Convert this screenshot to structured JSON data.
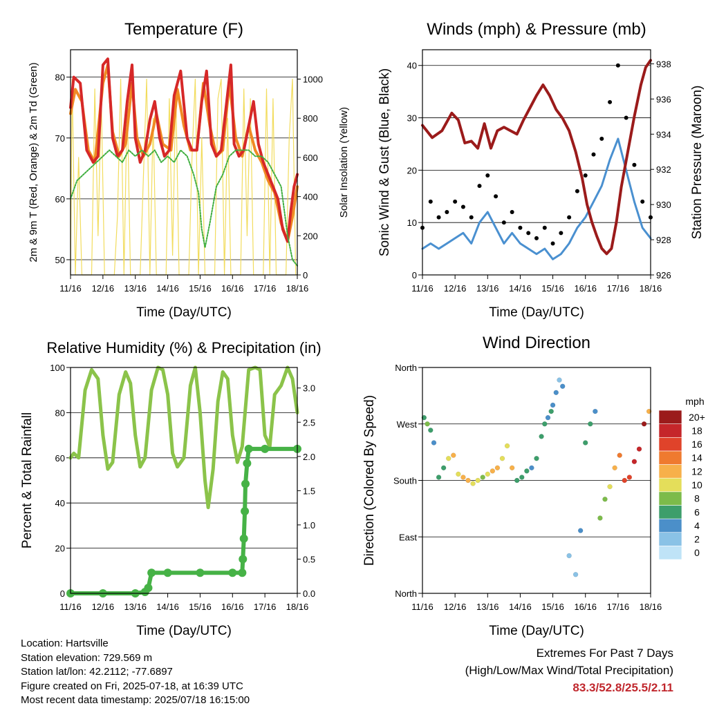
{
  "colors": {
    "temp_2m": "#d62828",
    "temp_9m": "#f08a24",
    "dewpoint": "#3fae3f",
    "solar": "#f2dc5d",
    "wind": "#4a90d0",
    "gust": "#000000",
    "pressure": "#9b1b1b",
    "rh": "#8bc34a",
    "precip": "#46b246"
  },
  "info": {
    "location": "Location: Hartsville",
    "elevation": "Station elevation: 729.569 m",
    "latlon": "Station lat/lon: 42.2112; -77.6897",
    "created": "Figure created on Fri, 2025-07-18, at 16:39 UTC",
    "recent": "Most recent data timestamp: 2025/07/18 16:15:00"
  },
  "extremes": {
    "line1": "Extremes For Past 7 Days",
    "line2": "(High/Low/Max Wind/Total Precipitation)",
    "values": "83.3/52.8/25.5/2.11"
  },
  "chart_data": [
    {
      "type": "line",
      "title": "Temperature (F)",
      "xlabel": "Time (Day/UTC)",
      "ylabel": "2m & 9m T (Red, Orange) & 2m Td (Green)",
      "ylabel_right": "Solar Insolation (Yellow)",
      "x_ticks": [
        "11/16",
        "12/16",
        "13/16",
        "14/16",
        "15/16",
        "16/16",
        "17/16",
        "18/16"
      ],
      "xlim": [
        0,
        7
      ],
      "ylim": [
        47.5,
        84.5
      ],
      "y_ticks": [
        50,
        60,
        70,
        80
      ],
      "ylim_right": [
        0,
        1150
      ],
      "y_ticks_right": [
        0,
        200,
        400,
        600,
        800,
        1000
      ],
      "series": [
        {
          "name": "2m T",
          "x": [
            0,
            0.1,
            0.3,
            0.5,
            0.7,
            0.85,
            1.0,
            1.15,
            1.3,
            1.45,
            1.6,
            1.75,
            1.9,
            2.0,
            2.15,
            2.3,
            2.45,
            2.6,
            2.75,
            2.9,
            3.05,
            3.2,
            3.4,
            3.6,
            3.75,
            3.9,
            4.05,
            4.2,
            4.35,
            4.5,
            4.65,
            4.8,
            4.95,
            5.05,
            5.2,
            5.35,
            5.5,
            5.65,
            5.8,
            5.95,
            6.1,
            6.25,
            6.4,
            6.55,
            6.7,
            6.8,
            6.9,
            7.0
          ],
          "values": [
            75,
            80,
            79,
            68,
            66,
            67,
            82,
            83,
            70,
            67,
            68,
            76,
            82,
            70,
            66,
            68,
            73,
            76,
            70,
            67,
            68,
            77,
            81,
            70,
            68,
            68,
            76,
            81,
            69,
            67,
            68,
            75,
            82,
            69,
            67,
            68,
            72,
            76,
            69,
            66,
            64,
            62,
            60,
            55,
            53,
            58,
            62,
            64
          ]
        },
        {
          "name": "9m T",
          "x": [
            0,
            0.15,
            0.35,
            0.55,
            0.75,
            1.0,
            1.15,
            1.3,
            1.5,
            1.7,
            1.9,
            2.05,
            2.25,
            2.45,
            2.65,
            2.85,
            3.1,
            3.3,
            3.5,
            3.7,
            3.9,
            4.1,
            4.3,
            4.5,
            4.7,
            4.9,
            5.1,
            5.3,
            5.5,
            5.7,
            5.9,
            6.1,
            6.3,
            6.5,
            6.7,
            6.85,
            7.0
          ],
          "values": [
            74,
            78,
            76,
            68,
            66,
            79,
            82,
            71,
            67,
            69,
            79,
            70,
            67,
            69,
            74,
            69,
            68,
            78,
            72,
            68,
            68,
            79,
            72,
            67,
            68,
            79,
            70,
            67,
            72,
            68,
            66,
            63,
            61,
            56,
            53,
            57,
            62
          ]
        },
        {
          "name": "2m Td",
          "x": [
            0,
            0.2,
            0.4,
            0.6,
            0.8,
            1.0,
            1.2,
            1.4,
            1.6,
            1.8,
            2.0,
            2.2,
            2.4,
            2.6,
            2.8,
            3.0,
            3.2,
            3.4,
            3.6,
            3.8,
            3.95,
            4.05,
            4.15,
            4.3,
            4.5,
            4.7,
            4.9,
            5.1,
            5.3,
            5.5,
            5.7,
            5.9,
            6.1,
            6.3,
            6.5,
            6.7,
            6.85,
            7.0
          ],
          "values": [
            60,
            63,
            64,
            65,
            66,
            67,
            68,
            67,
            66,
            68,
            67,
            68,
            67,
            68,
            66,
            67,
            66,
            68,
            67,
            64,
            61,
            55,
            52,
            56,
            62,
            64,
            67,
            68,
            68,
            68,
            67,
            67,
            66,
            64,
            62,
            54,
            50,
            49
          ]
        },
        {
          "name": "Solar Insolation",
          "axis": "right",
          "x": [
            0,
            0.05,
            0.15,
            0.25,
            0.35,
            0.45,
            0.55,
            0.65,
            0.75,
            0.85,
            0.95,
            1.05,
            1.15,
            1.25,
            1.35,
            1.45,
            1.55,
            1.65,
            1.75,
            1.85,
            1.95,
            2.05,
            2.15,
            2.25,
            2.35,
            2.45,
            2.55,
            2.65,
            2.75,
            2.85,
            2.95,
            3.05,
            3.15,
            3.25,
            3.35,
            3.45,
            3.55,
            3.65,
            3.75,
            3.85,
            3.95,
            4.05,
            4.15,
            4.25,
            4.35,
            4.45,
            4.55,
            4.65,
            4.75,
            4.85,
            4.95,
            5.05,
            5.15,
            5.25,
            5.35,
            5.45,
            5.55,
            5.65,
            5.75,
            5.85,
            5.95,
            6.05,
            6.15,
            6.25,
            6.35,
            6.45,
            6.55,
            6.65,
            6.75,
            6.85,
            6.95,
            7.0
          ],
          "values": [
            0,
            1000,
            0,
            600,
            0,
            0,
            0,
            0,
            950,
            200,
            900,
            0,
            0,
            0,
            0,
            300,
            1000,
            0,
            900,
            0,
            0,
            0,
            0,
            500,
            1000,
            0,
            800,
            0,
            0,
            0,
            0,
            900,
            100,
            950,
            0,
            0,
            0,
            0,
            600,
            1000,
            0,
            700,
            0,
            0,
            0,
            0,
            900,
            1000,
            0,
            800,
            0,
            0,
            0,
            0,
            950,
            200,
            900,
            0,
            0,
            0,
            0,
            950,
            0,
            900,
            0,
            0,
            0,
            0,
            700,
            1000,
            0,
            0
          ]
        }
      ]
    },
    {
      "type": "scatter",
      "title": "Winds (mph) & Pressure (mb)",
      "xlabel": "Time (Day/UTC)",
      "ylabel": "Sonic Wind & Gust (Blue, Black)",
      "ylabel_right": "Station Pressure (Maroon)",
      "x_ticks": [
        "11/16",
        "12/16",
        "13/16",
        "14/16",
        "15/16",
        "16/16",
        "17/16",
        "18/16"
      ],
      "xlim": [
        0,
        7
      ],
      "ylim": [
        0,
        43
      ],
      "y_ticks": [
        0,
        10,
        20,
        30,
        40
      ],
      "ylim_right": [
        926,
        938.8
      ],
      "y_ticks_right": [
        926,
        928,
        930,
        932,
        934,
        936,
        938
      ],
      "series": [
        {
          "name": "Sonic Wind",
          "x": [
            0,
            0.25,
            0.5,
            0.75,
            1.0,
            1.25,
            1.5,
            1.75,
            2.0,
            2.25,
            2.5,
            2.75,
            3.0,
            3.25,
            3.5,
            3.75,
            4.0,
            4.25,
            4.5,
            4.75,
            5.0,
            5.25,
            5.5,
            5.75,
            6.0,
            6.25,
            6.5,
            6.75,
            7.0
          ],
          "values": [
            5,
            6,
            5,
            6,
            7,
            8,
            6,
            10,
            12,
            9,
            6,
            8,
            6,
            5,
            4,
            5,
            3,
            4,
            6,
            9,
            11,
            14,
            17,
            22,
            26,
            20,
            14,
            9,
            7
          ]
        },
        {
          "name": "Gust",
          "x": [
            0,
            0.25,
            0.5,
            0.75,
            1.0,
            1.25,
            1.5,
            1.75,
            2.0,
            2.25,
            2.5,
            2.75,
            3.0,
            3.25,
            3.5,
            3.75,
            4.0,
            4.25,
            4.5,
            4.75,
            5.0,
            5.25,
            5.5,
            5.75,
            6.0,
            6.25,
            6.5,
            6.75,
            7.0
          ],
          "values": [
            9,
            14,
            11,
            12,
            14,
            13,
            11,
            17,
            19,
            15,
            10,
            12,
            9,
            8,
            7,
            9,
            6,
            8,
            11,
            16,
            19,
            23,
            26,
            33,
            40,
            30,
            21,
            14,
            11
          ]
        },
        {
          "name": "Station Pressure",
          "axis": "right",
          "x": [
            0,
            0.3,
            0.6,
            0.9,
            1.1,
            1.3,
            1.5,
            1.7,
            1.9,
            2.1,
            2.3,
            2.5,
            2.7,
            2.9,
            3.1,
            3.3,
            3.5,
            3.7,
            3.9,
            4.1,
            4.3,
            4.5,
            4.7,
            4.9,
            5.05,
            5.2,
            5.35,
            5.5,
            5.65,
            5.8,
            5.95,
            6.1,
            6.3,
            6.5,
            6.7,
            6.85,
            7.0
          ],
          "values": [
            934.5,
            933.8,
            934.2,
            935.2,
            934.8,
            933.5,
            933.6,
            933.2,
            934.6,
            933.2,
            934.2,
            934.4,
            934.2,
            934.0,
            934.8,
            935.5,
            936.2,
            936.8,
            936.2,
            935.4,
            934.9,
            934.2,
            933.0,
            931.5,
            930.0,
            929.0,
            928.2,
            927.5,
            927.2,
            927.5,
            929.0,
            931.0,
            933.0,
            935.0,
            936.8,
            937.8,
            938.2
          ]
        }
      ]
    },
    {
      "type": "line",
      "title": "Relative Humidity (%) & Precipitation (in)",
      "xlabel": "Time (Day/UTC)",
      "ylabel": "Percent & Total Rainfall",
      "x_ticks": [
        "11/16",
        "12/16",
        "13/16",
        "14/16",
        "15/16",
        "16/16",
        "17/16",
        "18/16"
      ],
      "xlim": [
        0,
        7
      ],
      "ylim": [
        0,
        100
      ],
      "y_ticks": [
        0,
        20,
        40,
        60,
        80,
        100
      ],
      "ylim_right": [
        0,
        3.3
      ],
      "y_ticks_right": [
        0.0,
        0.5,
        1.0,
        1.5,
        2.0,
        2.5,
        3.0
      ],
      "series": [
        {
          "name": "Relative Humidity",
          "x": [
            0,
            0.1,
            0.25,
            0.45,
            0.65,
            0.85,
            1.0,
            1.15,
            1.3,
            1.5,
            1.7,
            1.85,
            2.0,
            2.15,
            2.3,
            2.5,
            2.7,
            2.85,
            3.0,
            3.15,
            3.3,
            3.5,
            3.7,
            3.85,
            4.0,
            4.15,
            4.25,
            4.4,
            4.55,
            4.7,
            4.85,
            5.0,
            5.15,
            5.3,
            5.5,
            5.7,
            5.85,
            6.0,
            6.15,
            6.3,
            6.5,
            6.7,
            6.85,
            7.0
          ],
          "values": [
            60,
            62,
            60,
            90,
            99,
            95,
            70,
            55,
            58,
            88,
            98,
            93,
            70,
            56,
            60,
            90,
            100,
            99,
            88,
            62,
            56,
            60,
            92,
            100,
            80,
            50,
            38,
            55,
            85,
            98,
            95,
            70,
            58,
            65,
            99,
            100,
            99,
            70,
            65,
            88,
            92,
            100,
            95,
            80
          ]
        },
        {
          "name": "Total Precipitation",
          "axis": "right",
          "x": [
            0,
            1.0,
            2.0,
            2.3,
            2.4,
            2.5,
            3.0,
            4.0,
            5.0,
            5.3,
            5.32,
            5.35,
            5.38,
            5.4,
            5.45,
            5.5,
            6.0,
            7.0
          ],
          "values": [
            0.0,
            0.0,
            0.0,
            0.02,
            0.08,
            0.3,
            0.3,
            0.3,
            0.3,
            0.3,
            0.5,
            0.8,
            1.2,
            1.6,
            1.9,
            2.11,
            2.11,
            2.11
          ]
        }
      ]
    },
    {
      "type": "scatter",
      "title": "Wind Direction",
      "xlabel": "Time (Day/UTC)",
      "ylabel": "Direction (Colored By Speed)",
      "x_ticks": [
        "11/16",
        "12/16",
        "13/16",
        "14/16",
        "15/16",
        "16/16",
        "17/16",
        "18/16"
      ],
      "xlim": [
        0,
        7
      ],
      "ylim": [
        0,
        360
      ],
      "y_tick_labels": [
        "North",
        "East",
        "South",
        "West",
        "North"
      ],
      "y_ticks": [
        0,
        90,
        180,
        270,
        360
      ],
      "colorbar": {
        "unit": "mph",
        "labels": [
          "0",
          "2",
          "4",
          "6",
          "8",
          "10",
          "12",
          "14",
          "16",
          "18",
          "20+"
        ],
        "colors": [
          "#bfe3f7",
          "#8ac2e6",
          "#4b8fc9",
          "#3d9e6b",
          "#7cbb4a",
          "#e4de5a",
          "#f7b04a",
          "#ef7a2f",
          "#e0432a",
          "#c5262a",
          "#9b1b1b"
        ]
      },
      "series": [
        {
          "name": "Wind Direction",
          "x": [
            0.05,
            0.15,
            0.25,
            0.35,
            0.5,
            0.65,
            0.8,
            0.95,
            1.1,
            1.25,
            1.4,
            1.55,
            1.7,
            1.85,
            2.0,
            2.15,
            2.3,
            2.45,
            2.6,
            2.75,
            2.9,
            3.05,
            3.2,
            3.35,
            3.5,
            3.65,
            3.75,
            3.85,
            3.95,
            4.0,
            4.1,
            4.2,
            4.3,
            4.5,
            4.7,
            4.85,
            5.0,
            5.15,
            5.3,
            5.45,
            5.6,
            5.75,
            5.9,
            6.05,
            6.2,
            6.35,
            6.5,
            6.65,
            6.8,
            6.95
          ],
          "values": [
            280,
            270,
            260,
            240,
            185,
            200,
            215,
            220,
            190,
            185,
            180,
            175,
            180,
            185,
            190,
            195,
            200,
            215,
            235,
            200,
            180,
            185,
            195,
            200,
            215,
            250,
            270,
            280,
            290,
            300,
            320,
            340,
            330,
            60,
            30,
            100,
            240,
            270,
            290,
            120,
            150,
            170,
            200,
            220,
            180,
            185,
            210,
            230,
            270,
            290
          ],
          "speed": [
            6,
            7,
            5,
            4,
            6,
            5,
            10,
            12,
            9,
            11,
            12,
            10,
            9,
            8,
            10,
            12,
            11,
            10,
            9,
            11,
            6,
            5,
            6,
            4,
            5,
            6,
            5,
            4,
            5,
            4,
            3,
            2,
            3,
            2,
            2,
            4,
            6,
            5,
            4,
            8,
            7,
            9,
            12,
            14,
            15,
            16,
            17,
            18,
            20,
            12
          ]
        }
      ]
    }
  ]
}
